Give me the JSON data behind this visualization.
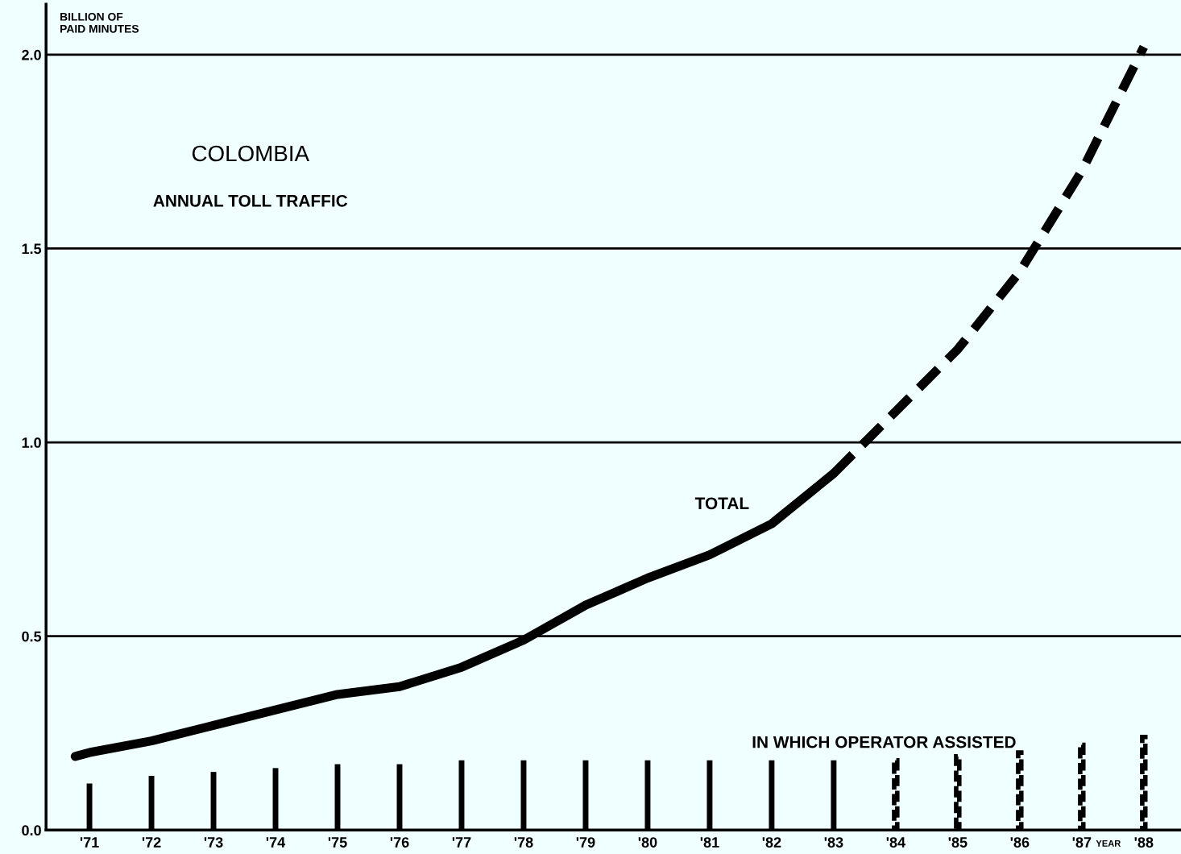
{
  "chart_data": {
    "type": "bar",
    "title": "COLOMBIA",
    "subtitle": "ANNUAL TOLL TRAFFIC",
    "ylabel": "BILLION OF\nPAID MINUTES",
    "xlabel": "YEAR",
    "xlim": [
      1970.3,
      1988.6
    ],
    "ylim": [
      0,
      2.13
    ],
    "xticks": [
      {
        "value": 1971,
        "label": "'71"
      },
      {
        "value": 1972,
        "label": "'72"
      },
      {
        "value": 1973,
        "label": "'73"
      },
      {
        "value": 1974,
        "label": "'74"
      },
      {
        "value": 1975,
        "label": "'75"
      },
      {
        "value": 1976,
        "label": "'76"
      },
      {
        "value": 1977,
        "label": "'77"
      },
      {
        "value": 1978,
        "label": "'78"
      },
      {
        "value": 1979,
        "label": "'79"
      },
      {
        "value": 1980,
        "label": "'80"
      },
      {
        "value": 1981,
        "label": "'81"
      },
      {
        "value": 1982,
        "label": "'82"
      },
      {
        "value": 1983,
        "label": "'83"
      },
      {
        "value": 1984,
        "label": "'84"
      },
      {
        "value": 1985,
        "label": "'85"
      },
      {
        "value": 1986,
        "label": "'86"
      },
      {
        "value": 1987,
        "label": "'87"
      },
      {
        "value": 1988,
        "label": "'88"
      }
    ],
    "yticks": [
      {
        "value": 0,
        "label": "0.0"
      },
      {
        "value": 0.5,
        "label": "0.5"
      },
      {
        "value": 1,
        "label": "1.0"
      },
      {
        "value": 1.5,
        "label": "1.5"
      },
      {
        "value": 2,
        "label": "2.0"
      }
    ],
    "grid": "y",
    "legend": false,
    "series": [
      {
        "type": "line",
        "name": "TOTAL",
        "color": "#000000",
        "line_style": "solid",
        "x": [
          1970.77,
          1971,
          1972,
          1973,
          1974,
          1975,
          1976,
          1977,
          1978,
          1979,
          1980,
          1981,
          1982,
          1983
        ],
        "values": [
          0.19,
          0.2,
          0.23,
          0.27,
          0.31,
          0.35,
          0.37,
          0.42,
          0.49,
          0.58,
          0.65,
          0.71,
          0.79,
          0.92
        ]
      },
      {
        "type": "line",
        "color": "#000000",
        "line_style": "dashed",
        "x": [
          1983,
          1984,
          1985,
          1986,
          1987,
          1988
        ],
        "values": [
          0.92,
          1.08,
          1.24,
          1.44,
          1.7,
          2.02
        ]
      },
      {
        "name": "IN WHICH OPERATOR ASSISTED",
        "color": "#000000",
        "line_style": "solid",
        "x": [
          1971,
          1972,
          1973,
          1974,
          1975,
          1976,
          1977,
          1978,
          1979,
          1980,
          1981,
          1982,
          1983
        ],
        "values": [
          0.12,
          0.14,
          0.15,
          0.16,
          0.17,
          0.17,
          0.18,
          0.18,
          0.18,
          0.18,
          0.18,
          0.18,
          0.18
        ]
      },
      {
        "color": "#000000",
        "line_style": "dashed",
        "x": [
          1984,
          1985,
          1986,
          1987,
          1988
        ],
        "values": [
          0.18,
          0.19,
          0.2,
          0.22,
          0.24
        ]
      }
    ]
  }
}
